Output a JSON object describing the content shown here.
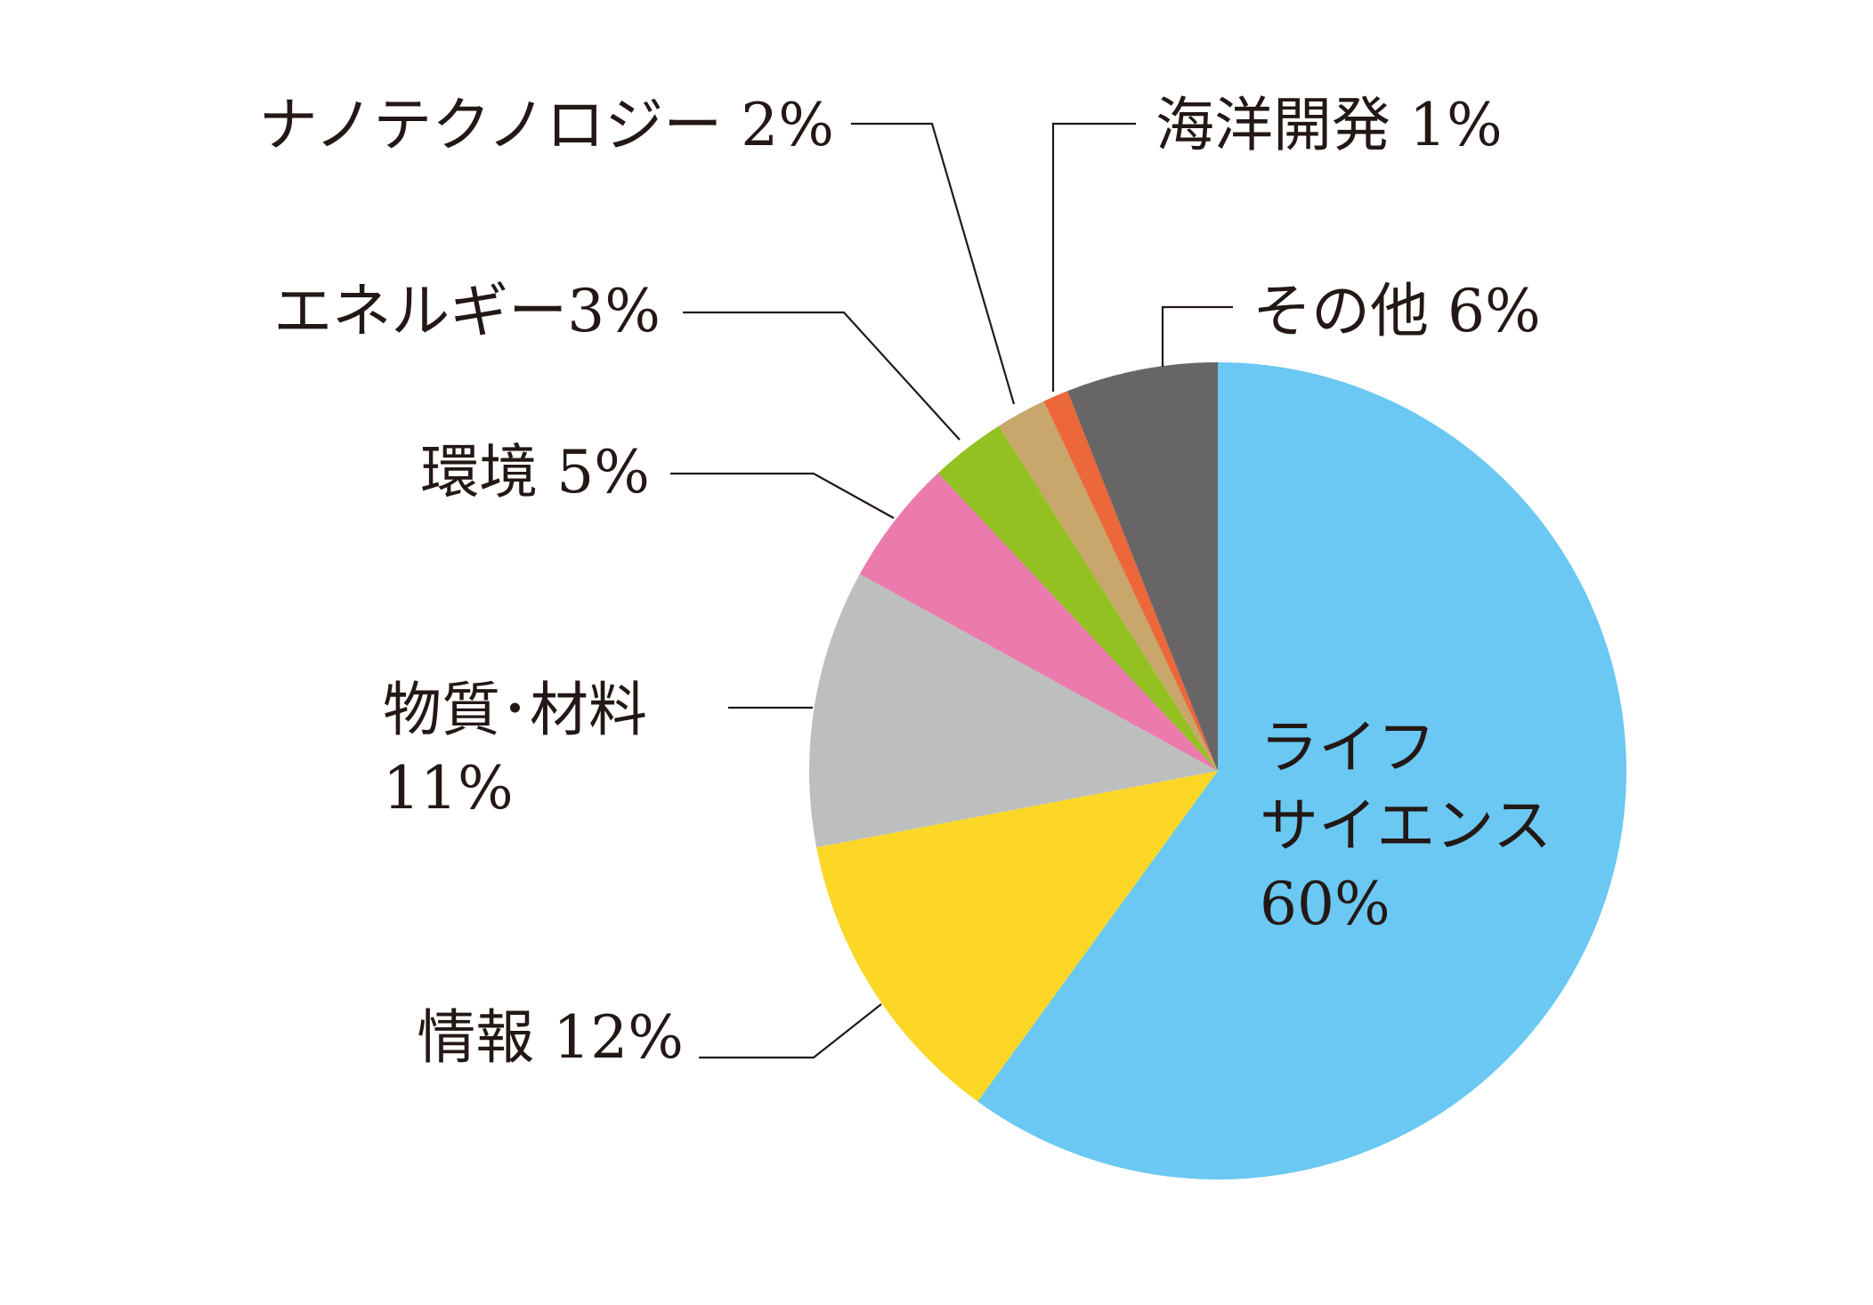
{
  "chart_data": {
    "type": "pie",
    "start_angle_deg": 0,
    "direction": "clockwise",
    "slices": [
      {
        "label_lines": [
          "ライフ",
          "サイエンス",
          "60%"
        ],
        "value": 60,
        "color": "#6AC8F2"
      },
      {
        "label_lines": [
          "情報 12%"
        ],
        "value": 12,
        "color": "#FDD726"
      },
      {
        "label_lines": [
          "物質･材料",
          "11%"
        ],
        "value": 11,
        "color": "#BDBFBE"
      },
      {
        "label_lines": [
          "環境 5%"
        ],
        "value": 5,
        "color": "#EB7AAD"
      },
      {
        "label_lines": [
          "エネルギー3%"
        ],
        "value": 3,
        "color": "#93C122"
      },
      {
        "label_lines": [
          "ナノテクノロジー 2%"
        ],
        "value": 2,
        "color": "#C9A66B"
      },
      {
        "label_lines": [
          "海洋開発 1%"
        ],
        "value": 1,
        "color": "#EC673A"
      },
      {
        "label_lines": [
          "その他 6%"
        ],
        "value": 6,
        "color": "#676566"
      }
    ]
  }
}
